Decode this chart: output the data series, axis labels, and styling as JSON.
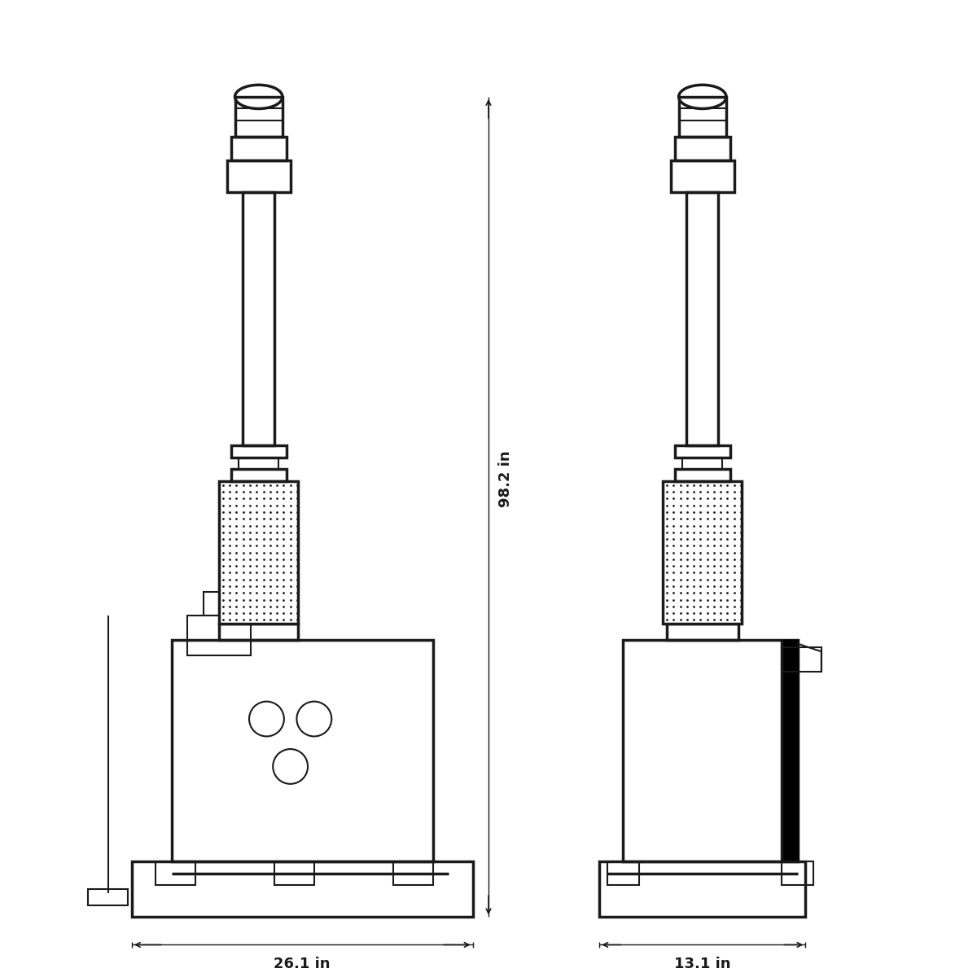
{
  "background_color": "#ffffff",
  "line_color": "#1a1a1a",
  "line_width": 2.5,
  "measurement_98_2": "98.2 in",
  "measurement_26_1": "26.1 in",
  "measurement_13_1": "13.1 in",
  "figsize": [
    12,
    12
  ],
  "dpi": 100
}
